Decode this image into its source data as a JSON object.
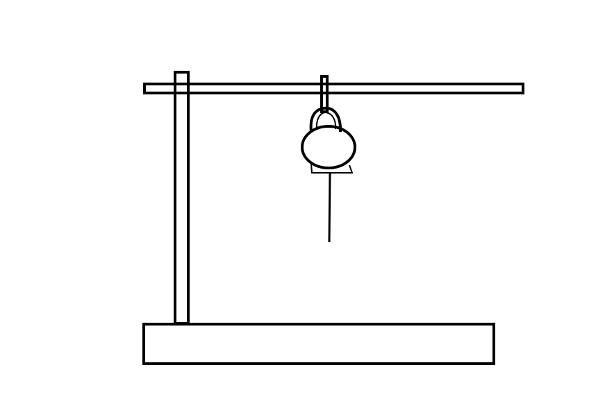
{
  "colors": {
    "background": "#ffffff",
    "ink": "#000000"
  },
  "diagram": {
    "components": [
      "base",
      "vertical-pole",
      "horizontal-bar",
      "hanger-loop",
      "hanging-bob",
      "bob-hook",
      "support-wedge",
      "hanging-string"
    ]
  }
}
